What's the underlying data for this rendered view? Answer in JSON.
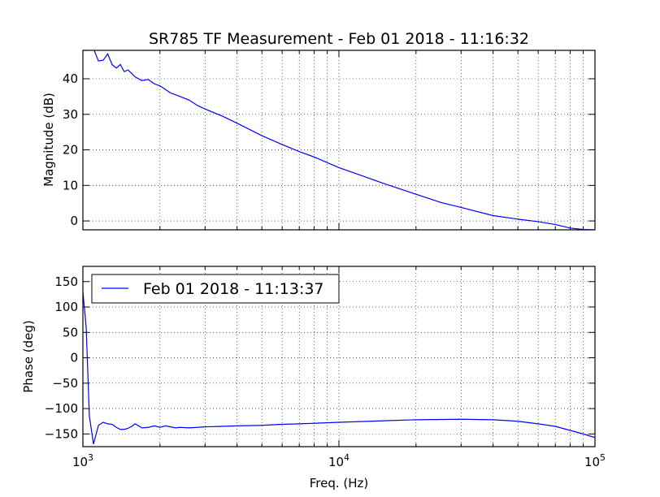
{
  "chart_data": [
    {
      "type": "line",
      "title": "SR785 TF Measurement - Feb 01 2018 - 11:16:32",
      "xlabel": "",
      "ylabel": "Magnitude (dB)",
      "xscale": "log",
      "xlim": [
        1000,
        100000
      ],
      "ylim": [
        -2.5,
        48
      ],
      "yticks": [
        0,
        10,
        20,
        30,
        40
      ],
      "grid": true,
      "series": [
        {
          "color": "#0000ff",
          "x": [
            1000,
            1050,
            1100,
            1150,
            1200,
            1250,
            1300,
            1350,
            1400,
            1450,
            1500,
            1550,
            1600,
            1700,
            1800,
            1900,
            2000,
            2100,
            2200,
            2300,
            2400,
            2600,
            2800,
            3000,
            3500,
            4000,
            5000,
            6000,
            7000,
            8000,
            10000,
            12000,
            15000,
            20000,
            25000,
            30000,
            40000,
            50000,
            60000,
            70000,
            80000,
            90000,
            100000
          ],
          "y": [
            48,
            48,
            48.5,
            45,
            45.2,
            47,
            44,
            43,
            44,
            42,
            42.5,
            41.5,
            40.5,
            39.5,
            39.8,
            38.6,
            38,
            37,
            36,
            35.5,
            35,
            34,
            32.5,
            31.5,
            29.5,
            27.5,
            24,
            21.5,
            19.5,
            18,
            15,
            13,
            10.5,
            7.5,
            5.2,
            3.8,
            1.5,
            0.5,
            -0.2,
            -1,
            -2,
            -2.4,
            -2.5
          ]
        }
      ]
    },
    {
      "type": "line",
      "title": "",
      "xlabel": "Freq. (Hz)",
      "ylabel": "Phase (deg)",
      "xscale": "log",
      "xlim": [
        1000,
        100000
      ],
      "ylim": [
        -175,
        180
      ],
      "yticks": [
        -150,
        -100,
        -50,
        0,
        50,
        100,
        150
      ],
      "xticks": [
        1000,
        10000,
        100000
      ],
      "xtick_bases": [
        "10",
        "10",
        "10"
      ],
      "xtick_exponents": [
        "3",
        "4",
        "5"
      ],
      "grid": true,
      "legend_position": "upper-left",
      "series": [
        {
          "name": "Feb 01 2018 - 11:13:37",
          "color": "#0000ff",
          "x": [
            1000,
            1030,
            1060,
            1100,
            1150,
            1200,
            1250,
            1300,
            1350,
            1400,
            1450,
            1500,
            1550,
            1600,
            1650,
            1700,
            1800,
            1900,
            2000,
            2100,
            2200,
            2300,
            2400,
            2600,
            2800,
            3000,
            3500,
            4000,
            5000,
            6000,
            7000,
            8000,
            10000,
            15000,
            20000,
            30000,
            40000,
            50000,
            60000,
            70000,
            80000,
            90000,
            100000
          ],
          "y": [
            130,
            60,
            -115,
            -170,
            -133,
            -127,
            -130,
            -131,
            -137,
            -141,
            -141,
            -139,
            -135,
            -130,
            -134,
            -138,
            -137,
            -134,
            -137,
            -134,
            -136,
            -138,
            -137,
            -138,
            -137,
            -136,
            -135,
            -134,
            -133,
            -131,
            -130,
            -129,
            -127,
            -124,
            -122,
            -121,
            -122,
            -125,
            -130,
            -135,
            -143,
            -150,
            -157
          ]
        }
      ]
    }
  ]
}
